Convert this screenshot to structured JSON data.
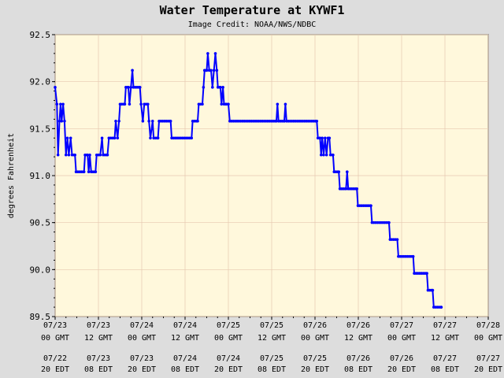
{
  "chart_data": {
    "type": "line",
    "title": "Water Temperature at KYWF1",
    "subtitle": "Image Credit: NOAA/NWS/NDBC",
    "ylabel": "degrees Fahrenheit",
    "xlabel": "",
    "ylim": [
      89.5,
      92.5
    ],
    "yticks": [
      "89.5",
      "90.0",
      "90.5",
      "91.0",
      "91.5",
      "92.0",
      "92.5"
    ],
    "xlim": [
      0,
      120
    ],
    "grid": true,
    "background_color": "#fff8dc",
    "line_color": "#0000ff",
    "xticks": [
      {
        "x": 0,
        "gmt": [
          "07/23",
          "00 GMT"
        ],
        "edt": [
          "07/22",
          "20 EDT"
        ]
      },
      {
        "x": 12,
        "gmt": [
          "07/23",
          "12 GMT"
        ],
        "edt": [
          "07/23",
          "08 EDT"
        ]
      },
      {
        "x": 24,
        "gmt": [
          "07/24",
          "00 GMT"
        ],
        "edt": [
          "07/23",
          "20 EDT"
        ]
      },
      {
        "x": 36,
        "gmt": [
          "07/24",
          "12 GMT"
        ],
        "edt": [
          "07/24",
          "08 EDT"
        ]
      },
      {
        "x": 48,
        "gmt": [
          "07/25",
          "00 GMT"
        ],
        "edt": [
          "07/24",
          "20 EDT"
        ]
      },
      {
        "x": 60,
        "gmt": [
          "07/25",
          "12 GMT"
        ],
        "edt": [
          "07/25",
          "08 EDT"
        ]
      },
      {
        "x": 72,
        "gmt": [
          "07/26",
          "00 GMT"
        ],
        "edt": [
          "07/25",
          "20 EDT"
        ]
      },
      {
        "x": 84,
        "gmt": [
          "07/26",
          "12 GMT"
        ],
        "edt": [
          "07/26",
          "08 EDT"
        ]
      },
      {
        "x": 96,
        "gmt": [
          "07/27",
          "00 GMT"
        ],
        "edt": [
          "07/26",
          "20 EDT"
        ]
      },
      {
        "x": 108,
        "gmt": [
          "07/27",
          "12 GMT"
        ],
        "edt": [
          "07/27",
          "08 EDT"
        ]
      },
      {
        "x": 120,
        "gmt": [
          "07/28",
          "00 GMT"
        ],
        "edt": [
          "07/27",
          "20 EDT"
        ]
      }
    ],
    "series": [
      {
        "values": [
          [
            0,
            91.94
          ],
          [
            0.5,
            91.76
          ],
          [
            0.8,
            91.22
          ],
          [
            1.2,
            91.58
          ],
          [
            1.5,
            91.76
          ],
          [
            1.8,
            91.58
          ],
          [
            2.2,
            91.76
          ],
          [
            2.6,
            91.58
          ],
          [
            3.0,
            91.22
          ],
          [
            3.4,
            91.4
          ],
          [
            3.8,
            91.22
          ],
          [
            4.3,
            91.4
          ],
          [
            4.7,
            91.22
          ],
          [
            5.5,
            91.22
          ],
          [
            5.8,
            91.04
          ],
          [
            8.0,
            91.04
          ],
          [
            8.3,
            91.22
          ],
          [
            9.0,
            91.22
          ],
          [
            9.3,
            91.04
          ],
          [
            9.6,
            91.22
          ],
          [
            10.0,
            91.04
          ],
          [
            11.2,
            91.04
          ],
          [
            11.5,
            91.22
          ],
          [
            12.5,
            91.22
          ],
          [
            13.0,
            91.4
          ],
          [
            13.3,
            91.22
          ],
          [
            14.5,
            91.22
          ],
          [
            14.9,
            91.4
          ],
          [
            16.5,
            91.4
          ],
          [
            16.8,
            91.58
          ],
          [
            17.3,
            91.4
          ],
          [
            17.7,
            91.58
          ],
          [
            18.0,
            91.76
          ],
          [
            19.3,
            91.76
          ],
          [
            19.6,
            91.94
          ],
          [
            20.3,
            91.94
          ],
          [
            20.6,
            91.76
          ],
          [
            21.0,
            91.94
          ],
          [
            21.4,
            92.12
          ],
          [
            21.7,
            91.94
          ],
          [
            23.5,
            91.94
          ],
          [
            23.8,
            91.76
          ],
          [
            24.3,
            91.58
          ],
          [
            24.7,
            91.76
          ],
          [
            25.7,
            91.76
          ],
          [
            26.0,
            91.58
          ],
          [
            26.4,
            91.4
          ],
          [
            27.0,
            91.58
          ],
          [
            27.3,
            91.4
          ],
          [
            28.5,
            91.4
          ],
          [
            28.8,
            91.58
          ],
          [
            32.0,
            91.58
          ],
          [
            32.3,
            91.4
          ],
          [
            37.8,
            91.4
          ],
          [
            38.1,
            91.58
          ],
          [
            39.5,
            91.58
          ],
          [
            39.8,
            91.76
          ],
          [
            40.8,
            91.76
          ],
          [
            41.1,
            91.94
          ],
          [
            41.4,
            92.12
          ],
          [
            42.0,
            92.12
          ],
          [
            42.3,
            92.3
          ],
          [
            42.7,
            92.12
          ],
          [
            43.2,
            92.12
          ],
          [
            43.6,
            91.94
          ],
          [
            44.0,
            92.12
          ],
          [
            44.4,
            92.3
          ],
          [
            44.8,
            92.12
          ],
          [
            45.1,
            91.94
          ],
          [
            45.8,
            91.94
          ],
          [
            46.1,
            91.76
          ],
          [
            46.5,
            91.94
          ],
          [
            46.8,
            91.76
          ],
          [
            47.4,
            91.76
          ],
          [
            48.0,
            91.76
          ],
          [
            48.4,
            91.58
          ],
          [
            61.3,
            91.58
          ],
          [
            61.6,
            91.76
          ],
          [
            61.9,
            91.58
          ],
          [
            63.5,
            91.58
          ],
          [
            63.8,
            91.76
          ],
          [
            64.1,
            91.58
          ],
          [
            72.5,
            91.58
          ],
          [
            72.8,
            91.4
          ],
          [
            73.4,
            91.4
          ],
          [
            73.7,
            91.22
          ],
          [
            74.0,
            91.4
          ],
          [
            74.4,
            91.22
          ],
          [
            74.8,
            91.4
          ],
          [
            75.2,
            91.22
          ],
          [
            75.6,
            91.4
          ],
          [
            76.0,
            91.4
          ],
          [
            76.3,
            91.22
          ],
          [
            77.0,
            91.22
          ],
          [
            77.3,
            91.04
          ],
          [
            78.6,
            91.04
          ],
          [
            78.9,
            90.86
          ],
          [
            80.6,
            90.86
          ],
          [
            80.9,
            91.04
          ],
          [
            81.2,
            90.86
          ],
          [
            83.6,
            90.86
          ],
          [
            83.9,
            90.68
          ],
          [
            87.5,
            90.68
          ],
          [
            87.8,
            90.5
          ],
          [
            92.5,
            90.5
          ],
          [
            92.8,
            90.32
          ],
          [
            94.8,
            90.32
          ],
          [
            95.1,
            90.14
          ],
          [
            99.2,
            90.14
          ],
          [
            99.5,
            89.96
          ],
          [
            103.0,
            89.96
          ],
          [
            103.3,
            89.78
          ],
          [
            104.6,
            89.78
          ],
          [
            104.9,
            89.6
          ],
          [
            107.0,
            89.6
          ]
        ]
      }
    ]
  }
}
